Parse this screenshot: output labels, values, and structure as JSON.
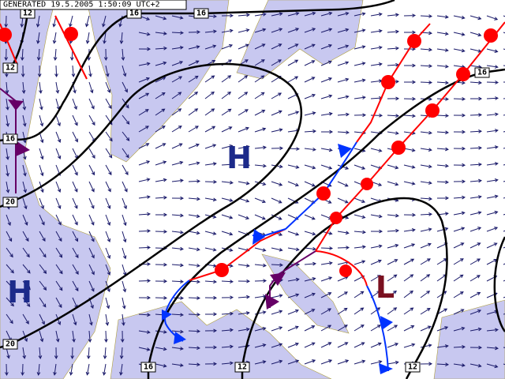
{
  "header": {
    "generated": "GENERATED 19.5.2005 1:50:09 UTC+2"
  },
  "isobar_labels": [
    "12",
    "16",
    "16",
    "12",
    "16",
    "20",
    "20",
    "16",
    "12",
    "12",
    "16"
  ],
  "pressure_centers": [
    {
      "label": "H"
    },
    {
      "label": "H"
    },
    {
      "label": "L"
    }
  ]
}
